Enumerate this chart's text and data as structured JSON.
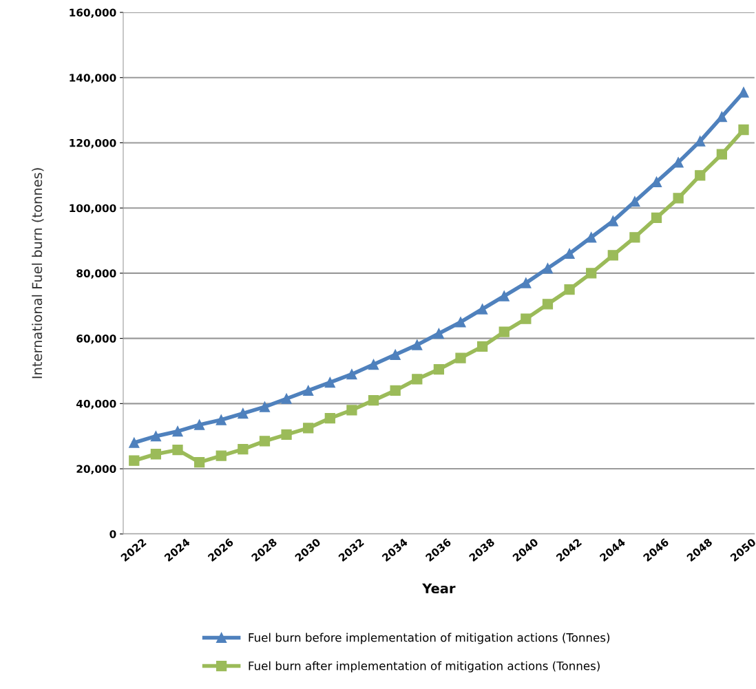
{
  "chart_data": {
    "type": "line",
    "xlabel": "Year",
    "ylabel": "International Fuel burn (tonnes)",
    "categories": [
      "2022",
      null,
      "2024",
      null,
      "2026",
      null,
      "2028",
      null,
      "2030",
      null,
      "2032",
      null,
      "2034",
      null,
      "2036",
      null,
      "2038",
      null,
      "2040",
      null,
      "2042",
      null,
      "2044",
      null,
      "2046",
      null,
      "2048",
      null,
      "2050"
    ],
    "series": [
      {
        "name": "Fuel burn before implementation of mitigation actions (Tonnes)",
        "color": "#4f81bd",
        "marker": "triangle",
        "values": [
          28000,
          30000,
          31500,
          33500,
          35000,
          37000,
          39000,
          41500,
          44000,
          46500,
          49000,
          52000,
          55000,
          58000,
          61500,
          65000,
          69000,
          73000,
          77000,
          81500,
          86000,
          91000,
          96000,
          102000,
          108000,
          114000,
          120500,
          128000,
          135500
        ]
      },
      {
        "name": "Fuel burn after implementation of mitigation actions (Tonnes)",
        "color": "#9bbb59",
        "marker": "square",
        "values": [
          22500,
          24500,
          25800,
          22000,
          24000,
          26000,
          28500,
          30500,
          32500,
          35500,
          38000,
          41000,
          44000,
          47500,
          50500,
          54000,
          57500,
          62000,
          66000,
          70500,
          75000,
          80000,
          85500,
          91000,
          97000,
          103000,
          110000,
          116500,
          124000
        ]
      }
    ],
    "ylim": [
      0,
      160000
    ],
    "yticks": [
      0,
      {
        "value": 20000,
        "label": "20,000"
      },
      {
        "value": 40000,
        "label": "40,000"
      },
      {
        "value": 60000,
        "label": "60,000"
      },
      {
        "value": 80000,
        "label": "80,000"
      },
      {
        "value": 100000,
        "label": "100,000"
      },
      {
        "value": 120000,
        "label": "120,000"
      },
      {
        "value": 140000,
        "label": "140,000"
      },
      {
        "value": 160000,
        "label": "160,000"
      }
    ],
    "grid": "y",
    "legend": "bottom",
    "line_style": "solid"
  }
}
